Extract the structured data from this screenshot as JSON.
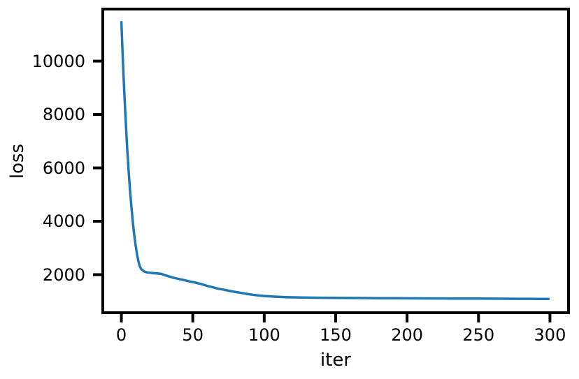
{
  "chart_data": {
    "type": "line",
    "title": "",
    "xlabel": "iter",
    "ylabel": "loss",
    "xlim": [
      -13,
      313
    ],
    "ylim": [
      575,
      11950
    ],
    "x_ticks": [
      0,
      50,
      100,
      150,
      200,
      250,
      300
    ],
    "y_ticks": [
      2000,
      4000,
      6000,
      8000,
      10000
    ],
    "grid": false,
    "legend": "none",
    "background_color": "#ffffff",
    "axis_color": "#000000",
    "line_color": "#1f77b4",
    "line_width": 3.5,
    "spine_width": 4,
    "tick_length": 14,
    "series": [
      {
        "name": "loss",
        "x": [
          0,
          1,
          2,
          3,
          4,
          5,
          6,
          7,
          8,
          9,
          10,
          11,
          12,
          13,
          14,
          16,
          18,
          20,
          22,
          25,
          28,
          30,
          33,
          36,
          40,
          44,
          48,
          52,
          56,
          60,
          64,
          68,
          72,
          76,
          80,
          84,
          88,
          92,
          96,
          100,
          105,
          110,
          115,
          120,
          130,
          140,
          150,
          160,
          170,
          180,
          190,
          200,
          210,
          220,
          230,
          240,
          250,
          260,
          270,
          280,
          290,
          299
        ],
        "y": [
          11460,
          10100,
          8900,
          7800,
          6800,
          5950,
          5200,
          4550,
          3980,
          3500,
          3090,
          2750,
          2480,
          2300,
          2200,
          2120,
          2085,
          2070,
          2060,
          2048,
          2030,
          1990,
          1940,
          1890,
          1840,
          1795,
          1745,
          1700,
          1645,
          1580,
          1528,
          1472,
          1432,
          1388,
          1350,
          1315,
          1278,
          1248,
          1222,
          1200,
          1182,
          1168,
          1158,
          1150,
          1141,
          1135,
          1131,
          1127,
          1123,
          1120,
          1117,
          1114,
          1111,
          1109,
          1106,
          1104,
          1102,
          1100,
          1098,
          1096,
          1093,
          1091
        ]
      }
    ]
  }
}
